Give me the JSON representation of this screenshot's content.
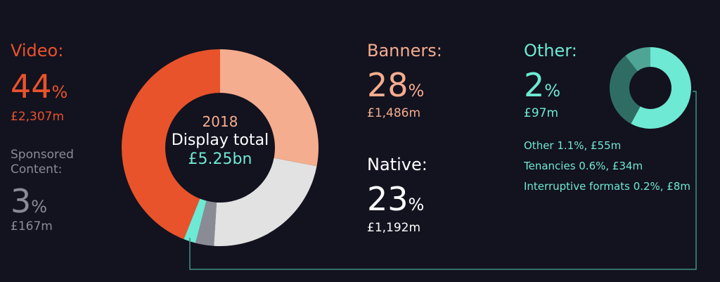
{
  "chart_data": {
    "type": "donut",
    "unit": "%",
    "center": {
      "year": "2018",
      "label": "Display total",
      "total": "£5.25bn"
    },
    "segments": [
      {
        "name": "Banners:",
        "value": 28,
        "amount": "£1,486m",
        "color": "#f4ad8e"
      },
      {
        "name": "Native:",
        "value": 23,
        "amount": "£1,192m",
        "color": "#e2e2e2"
      },
      {
        "name": "Sponsored Content:",
        "value": 3,
        "amount": "£167m",
        "color": "#8b8b96"
      },
      {
        "name": "Other:",
        "value": 2,
        "amount": "£97m",
        "color": "#6ee9d3"
      },
      {
        "name": "Video:",
        "value": 44,
        "amount": "£2,307m",
        "color": "#e8532b"
      }
    ],
    "breakdown": {
      "type": "donut",
      "values": [
        1.1,
        0.6,
        0.2
      ],
      "value_labels": [
        "Other 1.1%, £55m",
        "Tenancies 0.6%, £34m",
        "Interruptive formats 0.2%, £8m"
      ],
      "colors": [
        "#6ee9d3",
        "#2f6d64",
        "#4ea596"
      ]
    }
  }
}
